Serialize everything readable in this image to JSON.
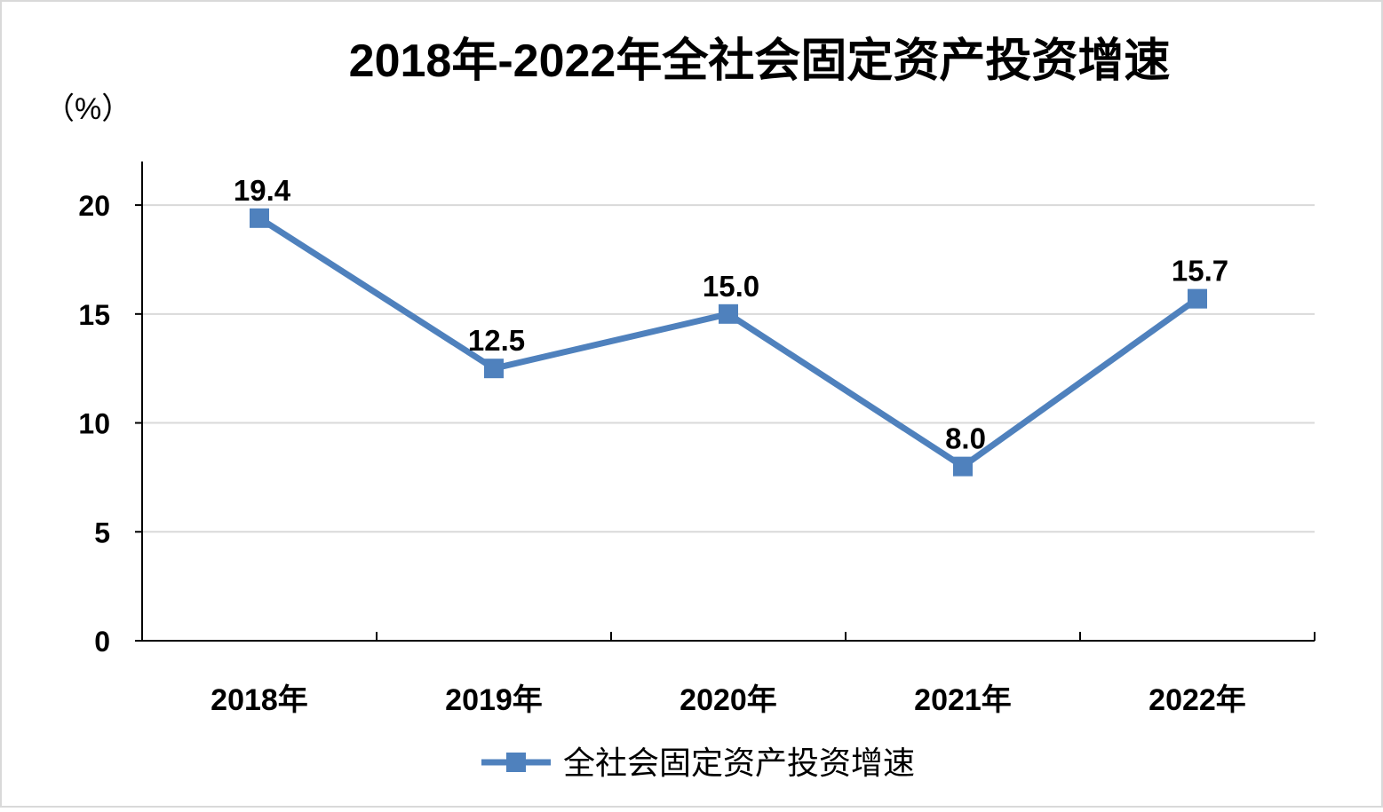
{
  "chart_data": {
    "type": "line",
    "title": "2018年-2022年全社会固定资产投资增速",
    "unit_label": "（%）",
    "categories": [
      "2018年",
      "2019年",
      "2020年",
      "2021年",
      "2022年"
    ],
    "series": [
      {
        "name": "全社会固定资产投资增速",
        "values": [
          19.4,
          12.5,
          15.0,
          8.0,
          15.7
        ],
        "labels": [
          "19.4",
          "12.5",
          "15.0",
          "8.0",
          "15.7"
        ],
        "color": "#4f81bd"
      }
    ],
    "yticks": [
      "0",
      "5",
      "10",
      "15",
      "20"
    ],
    "ylim": [
      0,
      22
    ],
    "grid": true,
    "legend_position": "bottom-center"
  }
}
